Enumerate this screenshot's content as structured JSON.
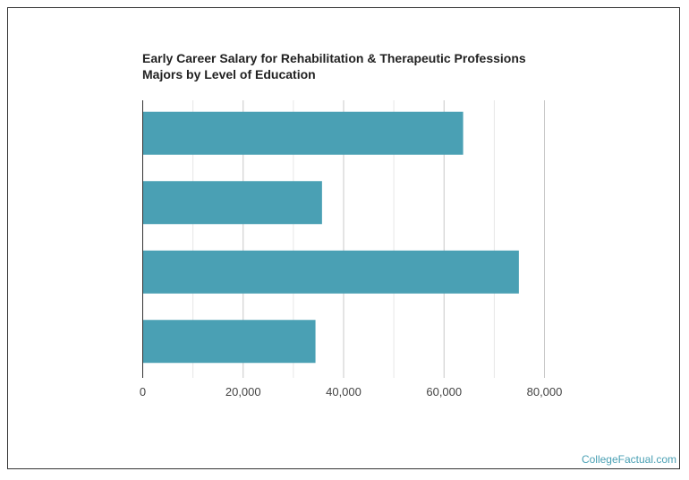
{
  "chart_data": {
    "type": "bar",
    "orientation": "horizontal",
    "title_line1": "Early Career Salary for Rehabilitation & Therapeutic Professions",
    "title_line2": "Majors by Level of Education",
    "categories": [
      "",
      "",
      "",
      ""
    ],
    "values": [
      63800,
      35700,
      74900,
      34400
    ],
    "xlim": [
      0,
      80000
    ],
    "x_ticks": [
      0,
      20000,
      40000,
      60000,
      80000
    ],
    "x_tick_labels": [
      "0",
      "20,000",
      "40,000",
      "60,000",
      "80,000"
    ],
    "grid": true,
    "bar_color": "#4aa0b4"
  },
  "credit": "CollegeFactual.com"
}
